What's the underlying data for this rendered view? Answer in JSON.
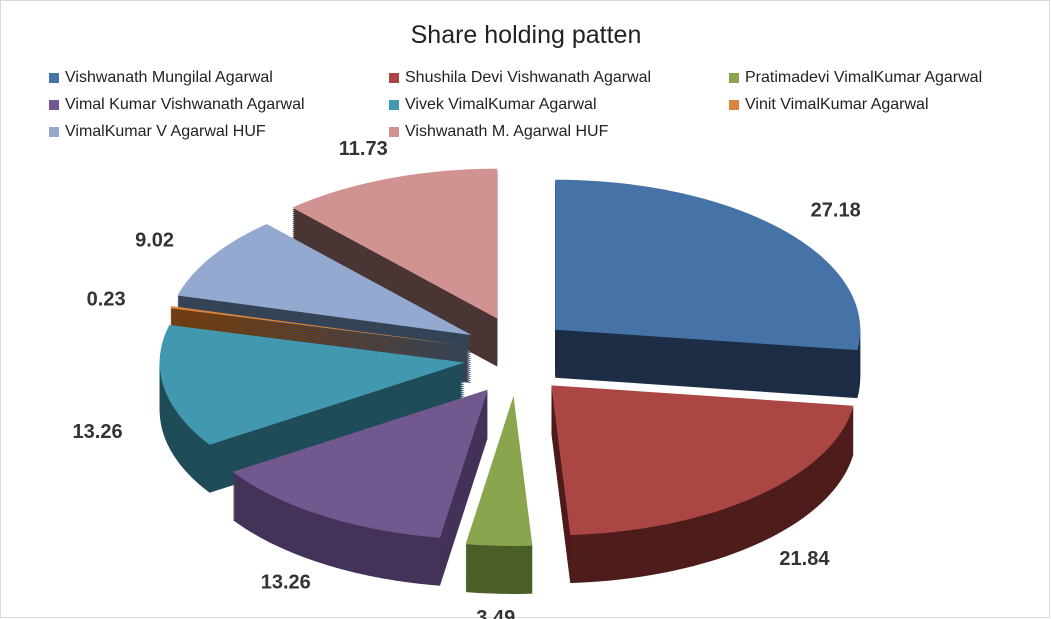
{
  "chart_data": {
    "type": "pie",
    "style": "3d-exploded",
    "title": "Share holding patten",
    "legend_position": "top",
    "series": [
      {
        "name": "Vishwanath Mungilal Agarwal",
        "value": 27.18,
        "color": "#4572A7",
        "side": "#1C2D45"
      },
      {
        "name": "Shushila Devi Vishwanath Agarwal",
        "value": 21.84,
        "color": "#AA4643",
        "side": "#4E1C1B"
      },
      {
        "name": "Pratimadevi VimalKumar  Agarwal",
        "value": 3.49,
        "color": "#89A54E",
        "side": "#4B5E27"
      },
      {
        "name": "Vimal Kumar Vishwanath Agarwal",
        "value": 13.26,
        "color": "#71588F",
        "side": "#443358"
      },
      {
        "name": "Vivek VimalKumar  Agarwal",
        "value": 13.26,
        "color": "#4198AF",
        "side": "#1F4C58"
      },
      {
        "name": "Vinit VimalKumar  Agarwal",
        "value": 0.23,
        "color": "#DB843D",
        "side": "#6E3D14"
      },
      {
        "name": "VimalKumar V Agarwal HUF",
        "value": 9.02,
        "color": "#93A9CF",
        "side": "#354356"
      },
      {
        "name": "Vishwanath M. Agarwal HUF",
        "value": 11.73,
        "color": "#D19392",
        "side": "#4A3535"
      }
    ],
    "data_labels": [
      "27.18",
      "21.84",
      "3.49",
      "13.26",
      "13.26",
      "0.23",
      "9.02",
      "11.73"
    ]
  }
}
